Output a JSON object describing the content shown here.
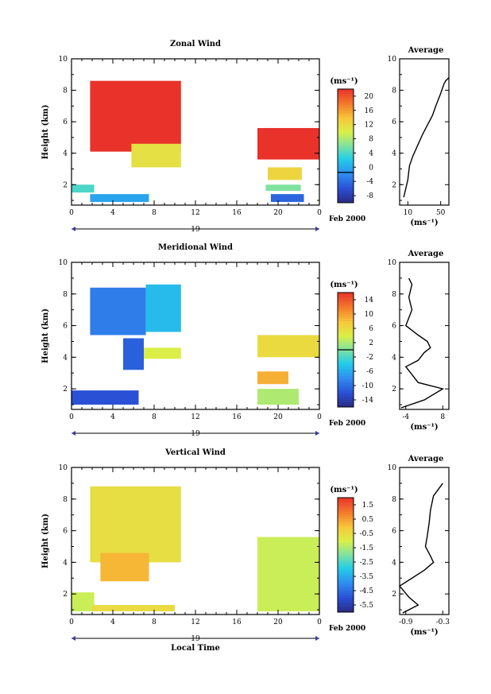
{
  "chart_data": [
    {
      "type": "heatmap",
      "title": "Zonal Wind",
      "xlabel": "",
      "ylabel": "Height (km)",
      "xlim": [
        0,
        24
      ],
      "ylim": [
        0.7,
        10
      ],
      "x_ticks": [
        "0",
        "4",
        "8",
        "12",
        "16",
        "20",
        "0"
      ],
      "y_ticks": [
        "2",
        "4",
        "6",
        "8",
        "10"
      ],
      "date_label": "19",
      "date_right": "Feb 2000",
      "colorbar": {
        "unit": "(ms⁻¹)",
        "min": -8,
        "max": 22,
        "ticks": [
          "20",
          "16",
          "12",
          "8",
          "4",
          "0",
          "-4",
          "-8"
        ],
        "zero_line": 0
      },
      "regions": [
        {
          "x": [
            1.8,
            10.6
          ],
          "y": [
            4.1,
            8.6
          ],
          "value": 22
        },
        {
          "x": [
            5.8,
            10.6
          ],
          "y": [
            3.1,
            4.6
          ],
          "value": 12
        },
        {
          "x": [
            0.0,
            2.2
          ],
          "y": [
            1.5,
            2.0
          ],
          "value": 5
        },
        {
          "x": [
            1.8,
            7.5
          ],
          "y": [
            0.9,
            1.4
          ],
          "value": 1
        },
        {
          "x": [
            18.0,
            24.0
          ],
          "y": [
            3.6,
            5.6
          ],
          "value": 22
        },
        {
          "x": [
            19.0,
            22.3
          ],
          "y": [
            2.3,
            3.1
          ],
          "value": 13
        },
        {
          "x": [
            18.8,
            22.2
          ],
          "y": [
            1.6,
            2.0
          ],
          "value": 7
        },
        {
          "x": [
            19.3,
            22.5
          ],
          "y": [
            0.9,
            1.4
          ],
          "value": -3
        }
      ],
      "average": {
        "title": "Average",
        "xlabel": "(ms⁻¹)",
        "x_ticks": [
          "10",
          "50"
        ],
        "xlim": [
          0,
          60
        ],
        "y_ticks": [
          "2",
          "4",
          "6",
          "8",
          "10"
        ],
        "profile_x": [
          5,
          10,
          12,
          16,
          22,
          28,
          34,
          40,
          44,
          47,
          50,
          52,
          54,
          56,
          60
        ],
        "profile_y": [
          1.2,
          2.3,
          3.2,
          3.8,
          4.5,
          5.2,
          5.8,
          6.4,
          7.0,
          7.4,
          7.8,
          8.1,
          8.4,
          8.6,
          8.8
        ]
      }
    },
    {
      "type": "heatmap",
      "title": "Meridional Wind",
      "xlabel": "",
      "ylabel": "Height (km)",
      "xlim": [
        0,
        24
      ],
      "ylim": [
        0.7,
        10
      ],
      "x_ticks": [
        "0",
        "4",
        "8",
        "12",
        "16",
        "20",
        "0"
      ],
      "y_ticks": [
        "2",
        "4",
        "6",
        "8",
        "10"
      ],
      "date_label": "19",
      "date_right": "Feb 2000",
      "colorbar": {
        "unit": "(ms⁻¹)",
        "min": -16,
        "max": 16,
        "ticks": [
          "14",
          "10",
          "6",
          "2",
          "-2",
          "-6",
          "-10",
          "-14"
        ],
        "zero_line": 0
      },
      "regions": [
        {
          "x": [
            1.8,
            7.2
          ],
          "y": [
            5.4,
            8.4
          ],
          "value": -9
        },
        {
          "x": [
            7.2,
            10.6
          ],
          "y": [
            5.6,
            8.6
          ],
          "value": -5
        },
        {
          "x": [
            5.0,
            7.0
          ],
          "y": [
            3.2,
            5.2
          ],
          "value": -11
        },
        {
          "x": [
            7.0,
            10.6
          ],
          "y": [
            3.9,
            4.6
          ],
          "value": 4
        },
        {
          "x": [
            0.0,
            6.5
          ],
          "y": [
            1.0,
            1.9
          ],
          "value": -12
        },
        {
          "x": [
            18.0,
            24.0
          ],
          "y": [
            4.0,
            5.4
          ],
          "value": 6
        },
        {
          "x": [
            18.0,
            21.0
          ],
          "y": [
            2.3,
            3.1
          ],
          "value": 9
        },
        {
          "x": [
            18.0,
            22.0
          ],
          "y": [
            1.0,
            2.0
          ],
          "value": 2
        }
      ],
      "average": {
        "title": "Average",
        "xlabel": "(ms⁻¹)",
        "x_ticks": [
          "-4",
          "8"
        ],
        "xlim": [
          -6,
          10
        ],
        "y_ticks": [
          "2",
          "4",
          "6",
          "8",
          "10"
        ],
        "profile_x": [
          -5.5,
          2,
          8,
          0,
          -2,
          -4,
          0,
          2,
          4,
          3,
          0,
          -4,
          -2,
          -3,
          -2,
          -3
        ],
        "profile_y": [
          0.8,
          1.3,
          2.0,
          2.4,
          2.9,
          3.4,
          3.8,
          4.3,
          4.6,
          5.0,
          5.4,
          6.0,
          7.0,
          7.8,
          8.6,
          9.0
        ]
      }
    },
    {
      "type": "heatmap",
      "title": "Vertical Wind",
      "xlabel": "Local Time",
      "ylabel": "Height (km)",
      "xlim": [
        0,
        24
      ],
      "ylim": [
        0.7,
        10
      ],
      "x_ticks": [
        "0",
        "4",
        "8",
        "12",
        "16",
        "20",
        "0"
      ],
      "y_ticks": [
        "2",
        "4",
        "6",
        "8",
        "10"
      ],
      "date_label": "19",
      "date_right": "Feb 2000",
      "colorbar": {
        "unit": "(ms⁻¹)",
        "min": -7,
        "max": 2.5,
        "ticks": [
          "1.5",
          "0.5",
          "-0.5",
          "-1.5",
          "-2.5",
          "-3.5",
          "-4.5",
          "-5.5"
        ],
        "zero_line": null
      },
      "regions": [
        {
          "x": [
            1.8,
            10.6
          ],
          "y": [
            4.0,
            8.8
          ],
          "value": -0.6
        },
        {
          "x": [
            2.8,
            7.5
          ],
          "y": [
            2.8,
            4.6
          ],
          "value": 0.3
        },
        {
          "x": [
            0.0,
            2.2
          ],
          "y": [
            0.9,
            2.1
          ],
          "value": -1.3
        },
        {
          "x": [
            2.0,
            10.0
          ],
          "y": [
            0.9,
            1.3
          ],
          "value": -0.5
        },
        {
          "x": [
            18.0,
            24.0
          ],
          "y": [
            0.9,
            5.6
          ],
          "value": -1.3
        }
      ],
      "average": {
        "title": "Average",
        "xlabel": "(ms⁻¹)",
        "x_ticks": [
          "-0.9",
          "-0.3"
        ],
        "xlim": [
          -1.0,
          -0.2
        ],
        "y_ticks": [
          "2",
          "4",
          "6",
          "8",
          "10"
        ],
        "profile_x": [
          -0.95,
          -0.7,
          -0.85,
          -1.0,
          -0.6,
          -0.45,
          -0.5,
          -0.58,
          -0.55,
          -0.52,
          -0.5,
          -0.45,
          -0.3
        ],
        "profile_y": [
          0.8,
          1.3,
          1.8,
          2.5,
          3.5,
          4.0,
          4.4,
          5.0,
          5.7,
          6.5,
          7.3,
          8.2,
          9.0
        ]
      }
    }
  ]
}
